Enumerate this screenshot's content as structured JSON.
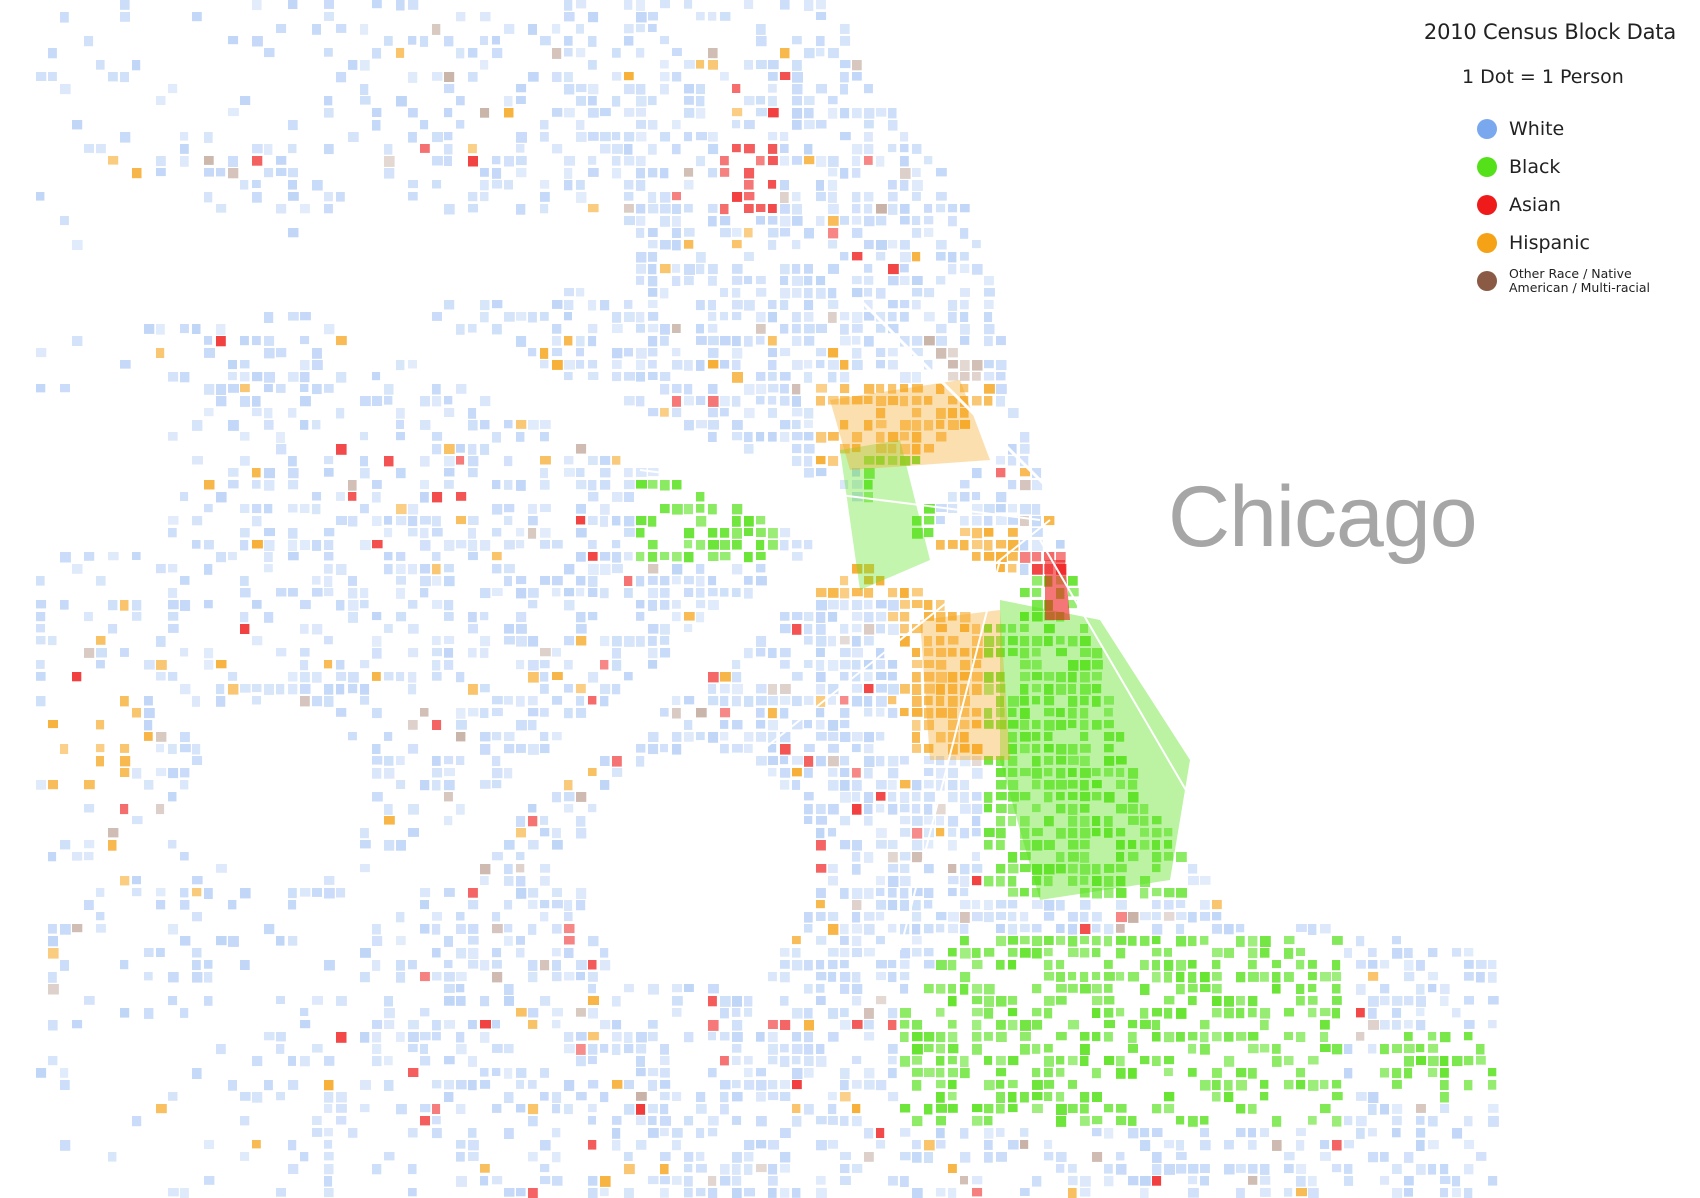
{
  "legend": {
    "title": "2010 Census Block Data",
    "subtitle": "1 Dot = 1 Person",
    "items": [
      {
        "label": "White",
        "color": "#7aa8ef"
      },
      {
        "label": "Black",
        "color": "#55e11a"
      },
      {
        "label": "Asian",
        "color": "#ef1a1a"
      },
      {
        "label": "Hispanic",
        "color": "#f5a216"
      },
      {
        "label": "Other Race / Native American / Multi-racial",
        "color": "#8a5a44"
      }
    ]
  },
  "map": {
    "city_label": "Chicago",
    "lake_color": "#ffffff"
  }
}
